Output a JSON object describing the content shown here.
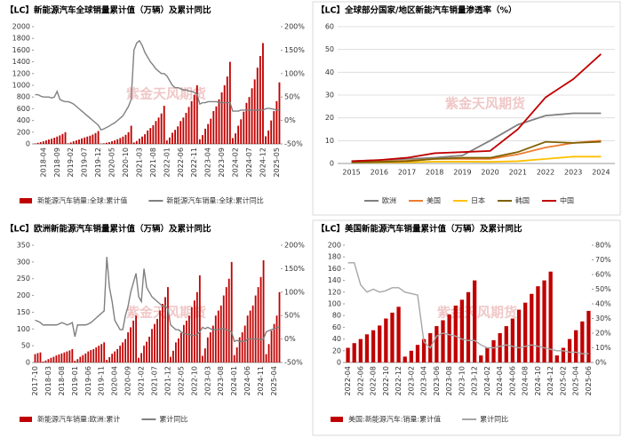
{
  "watermark": "紫金天风期货",
  "chart_data": [
    {
      "type": "combo",
      "title": "【LC】新能源汽车全球销量累计值（万辆）及累计同比",
      "grid": false,
      "categories": [
        null,
        null,
        null,
        "2018-04",
        null,
        null,
        null,
        null,
        "2018-09",
        null,
        null,
        null,
        null,
        "2019-02",
        null,
        null,
        null,
        null,
        "2019-07",
        null,
        null,
        null,
        null,
        "2019-12",
        null,
        null,
        null,
        null,
        "2020-05",
        null,
        null,
        null,
        null,
        "2020-10",
        null,
        null,
        null,
        null,
        "2021-03",
        null,
        null,
        null,
        null,
        "2021-08",
        null,
        null,
        null,
        null,
        "2022-01",
        null,
        null,
        null,
        null,
        "2022-06",
        null,
        null,
        null,
        null,
        "2022-11",
        null,
        null,
        null,
        null,
        "2023-04",
        null,
        null,
        null,
        null,
        "2023-09",
        null,
        null,
        null,
        null,
        "2024-02",
        null,
        null,
        null,
        null,
        "2024-07",
        null,
        null,
        null,
        null,
        "2024-12",
        null,
        null,
        null,
        null,
        "2025-05",
        null
      ],
      "ylim": [
        0,
        2000
      ],
      "yticks": [
        0,
        200,
        400,
        600,
        800,
        1000,
        1200,
        1400,
        1600,
        1800,
        2000
      ],
      "y2lim": [
        -50,
        200
      ],
      "y2ticks": [
        {
          "value": -50,
          "label": "-50%"
        },
        {
          "value": 0,
          "label": "0%"
        },
        {
          "value": 50,
          "label": "50%"
        },
        {
          "value": 100,
          "label": "100%"
        },
        {
          "value": 150,
          "label": "150%"
        },
        {
          "value": 200,
          "label": "200%"
        }
      ],
      "series": [
        {
          "name": "新能源汽车销量:全球:累计值",
          "color": "#c00000",
          "type": "bar",
          "values": [
            8,
            18,
            30,
            45,
            60,
            75,
            90,
            105,
            125,
            145,
            170,
            200,
            10,
            25,
            45,
            60,
            75,
            95,
            110,
            125,
            140,
            160,
            185,
            220,
            5,
            10,
            20,
            30,
            45,
            60,
            80,
            100,
            125,
            155,
            200,
            310,
            25,
            50,
            90,
            125,
            165,
            230,
            270,
            320,
            390,
            450,
            520,
            650,
            60,
            110,
            190,
            240,
            300,
            390,
            450,
            530,
            630,
            730,
            840,
            1000,
            80,
            150,
            260,
            340,
            430,
            560,
            640,
            760,
            880,
            1000,
            1150,
            1400,
            100,
            180,
            310,
            420,
            550,
            700,
            800,
            950,
            1100,
            1300,
            1500,
            1720,
            130,
            230,
            400,
            560,
            730,
            1050
          ]
        },
        {
          "name": "新能源汽车销量:全球:累计同比",
          "color": "#808080",
          "type": "line",
          "axis": "y2",
          "values": [
            55,
            55,
            52,
            50,
            50,
            50,
            48,
            50,
            62,
            45,
            42,
            40,
            40,
            38,
            35,
            30,
            25,
            20,
            15,
            10,
            5,
            0,
            -5,
            -10,
            -20,
            -18,
            -15,
            -12,
            -8,
            -5,
            0,
            5,
            10,
            20,
            30,
            45,
            150,
            165,
            170,
            160,
            145,
            135,
            125,
            118,
            110,
            105,
            100,
            100,
            95,
            85,
            75,
            70,
            70,
            68,
            65,
            65,
            63,
            62,
            60,
            55,
            35,
            38,
            38,
            40,
            40,
            40,
            40,
            38,
            38,
            38,
            38,
            38,
            20,
            20,
            20,
            22,
            22,
            22,
            22,
            22,
            22,
            22,
            22,
            22,
            25,
            26,
            25,
            24,
            22,
            22
          ]
        }
      ]
    },
    {
      "type": "line",
      "title": "【LC】全球部分国家/地区新能汽车销量渗透率（%）",
      "grid": true,
      "categories": [
        "2015",
        "2016",
        "2017",
        "2018",
        "2019",
        "2020",
        "2021",
        "2022",
        "2023",
        "2024"
      ],
      "ylim": [
        0,
        60
      ],
      "yticks": [
        0,
        10,
        20,
        30,
        40,
        50,
        60
      ],
      "series": [
        {
          "name": "欧洲",
          "color": "#808080",
          "values": [
            1,
            1.5,
            2,
            2.5,
            3.5,
            10,
            17,
            21,
            22,
            22
          ]
        },
        {
          "name": "美国",
          "color": "#ed7d31",
          "values": [
            0.7,
            0.9,
            1.2,
            2,
            2,
            2,
            4,
            7,
            9,
            10
          ]
        },
        {
          "name": "日本",
          "color": "#ffc000",
          "values": [
            0.5,
            0.5,
            0.5,
            0.8,
            0.8,
            0.7,
            1,
            2,
            3,
            3
          ]
        },
        {
          "name": "韩国",
          "color": "#7f6000",
          "values": [
            0.5,
            0.7,
            1,
            2,
            2.5,
            2.5,
            5,
            9.5,
            9,
            9.5
          ]
        },
        {
          "name": "中国",
          "color": "#c00000",
          "values": [
            1,
            1.5,
            2.5,
            4.5,
            5,
            5.5,
            15,
            29,
            37,
            48
          ]
        }
      ]
    },
    {
      "type": "combo",
      "title": "【LC】欧洲新能源汽车销量累计值（万辆）及累计同比",
      "grid": false,
      "categories": [
        "2017-10",
        null,
        null,
        null,
        null,
        "2018-03",
        null,
        null,
        null,
        null,
        "2018-08",
        null,
        null,
        null,
        null,
        "2019-01",
        null,
        null,
        null,
        null,
        "2019-06",
        null,
        null,
        null,
        null,
        "2019-11",
        null,
        null,
        null,
        null,
        "2020-04",
        null,
        null,
        null,
        null,
        "2020-09",
        null,
        null,
        null,
        null,
        "2021-02",
        null,
        null,
        null,
        null,
        "2021-07",
        null,
        null,
        null,
        null,
        "2021-12",
        null,
        null,
        null,
        null,
        "2022-05",
        null,
        null,
        null,
        null,
        "2022-10",
        null,
        null,
        null,
        null,
        "2023-03",
        null,
        null,
        null,
        null,
        "2023-08",
        null,
        null,
        null,
        null,
        "2024-01",
        null,
        null,
        null,
        null,
        "2024-06",
        null,
        null,
        null,
        null,
        "2024-11",
        null,
        null,
        null,
        null,
        "2025-04",
        null,
        null
      ],
      "ylim": [
        0,
        350
      ],
      "yticks": [
        0,
        50,
        100,
        150,
        200,
        250,
        300,
        350
      ],
      "y2lim": [
        -50,
        200
      ],
      "y2ticks": [
        {
          "value": -50,
          "label": "-50%"
        },
        {
          "value": 0,
          "label": "0%"
        },
        {
          "value": 50,
          "label": "50%"
        },
        {
          "value": 100,
          "label": "100%"
        },
        {
          "value": 150,
          "label": "150%"
        },
        {
          "value": 200,
          "label": "200%"
        }
      ],
      "series": [
        {
          "name": "新能源汽车销量:欧洲:累计",
          "color": "#c00000",
          "type": "bar",
          "values": [
            25,
            28,
            30,
            3,
            6,
            10,
            14,
            17,
            21,
            24,
            27,
            30,
            33,
            36,
            40,
            5,
            10,
            17,
            22,
            27,
            33,
            37,
            40,
            45,
            50,
            55,
            60,
            8,
            16,
            26,
            33,
            40,
            50,
            60,
            70,
            90,
            105,
            125,
            140,
            14,
            28,
            50,
            62,
            77,
            100,
            115,
            130,
            155,
            175,
            195,
            225,
            17,
            35,
            60,
            72,
            88,
            112,
            125,
            140,
            165,
            185,
            210,
            260,
            20,
            42,
            75,
            90,
            110,
            140,
            155,
            170,
            200,
            225,
            250,
            300,
            22,
            45,
            75,
            90,
            110,
            140,
            155,
            170,
            200,
            225,
            255,
            305,
            25,
            55,
            95,
            115,
            140,
            210
          ]
        },
        {
          "name": "累计同比",
          "color": "#808080",
          "type": "line",
          "axis": "y2",
          "values": [
            40,
            38,
            35,
            30,
            30,
            30,
            30,
            30,
            30,
            32,
            35,
            33,
            30,
            32,
            35,
            5,
            30,
            30,
            30,
            30,
            32,
            35,
            40,
            45,
            50,
            55,
            60,
            175,
            110,
            80,
            40,
            30,
            20,
            20,
            50,
            70,
            100,
            120,
            140,
            90,
            80,
            150,
            110,
            100,
            90,
            85,
            80,
            75,
            70,
            70,
            65,
            30,
            25,
            20,
            20,
            15,
            12,
            10,
            10,
            8,
            7,
            10,
            15,
            25,
            22,
            25,
            22,
            20,
            20,
            20,
            22,
            22,
            20,
            18,
            15,
            -5,
            -3,
            -5,
            -5,
            -5,
            0,
            0,
            0,
            0,
            0,
            -2,
            0,
            15,
            18,
            20,
            22,
            24,
            25
          ]
        }
      ]
    },
    {
      "type": "combo",
      "title": "【LC】美国新能源汽车销量累计值（万辆）及累计同比",
      "grid": false,
      "categories": [
        "2022-04",
        null,
        "2022-06",
        null,
        "2022-08",
        null,
        "2022-10",
        null,
        "2022-12",
        null,
        "2023-02",
        null,
        "2023-04",
        null,
        "2023-06",
        null,
        "2023-08",
        null,
        "2023-10",
        null,
        "2023-12",
        null,
        "2024-02",
        null,
        "2024-04",
        null,
        "2024-06",
        null,
        "2024-08",
        null,
        "2024-10",
        null,
        "2024-12",
        null,
        "2025-02",
        null,
        "2025-04",
        null,
        "2025-06"
      ],
      "ylim": [
        0,
        200
      ],
      "yticks": [
        0,
        20,
        40,
        60,
        80,
        100,
        120,
        140,
        160,
        180,
        200
      ],
      "y2lim": [
        0,
        80
      ],
      "y2ticks": [
        {
          "value": 0,
          "label": "0%"
        },
        {
          "value": 10,
          "label": "10%"
        },
        {
          "value": 20,
          "label": "20%"
        },
        {
          "value": 30,
          "label": "30%"
        },
        {
          "value": 40,
          "label": "40%"
        },
        {
          "value": 50,
          "label": "50%"
        },
        {
          "value": 60,
          "label": "60%"
        },
        {
          "value": 70,
          "label": "70%"
        },
        {
          "value": 80,
          "label": "80%"
        }
      ],
      "series": [
        {
          "name": "美国:新能源汽车:销量:累计值",
          "color": "#c00000",
          "type": "bar",
          "values": [
            25,
            33,
            40,
            48,
            55,
            63,
            75,
            85,
            95,
            10,
            20,
            30,
            40,
            50,
            62,
            72,
            82,
            97,
            107,
            120,
            140,
            12,
            25,
            38,
            50,
            62,
            75,
            90,
            102,
            117,
            130,
            140,
            155,
            12,
            25,
            40,
            55,
            70,
            88
          ]
        },
        {
          "name": "累计同比",
          "color": "#a6a6a6",
          "type": "line",
          "axis": "y2",
          "values": [
            68,
            68,
            53,
            48,
            50,
            48,
            49,
            51,
            51,
            48,
            47,
            46,
            14,
            10,
            18,
            20,
            19,
            18,
            16,
            15,
            15,
            12,
            10,
            10,
            11,
            12,
            11,
            10,
            11,
            12,
            11,
            10,
            9,
            8,
            8,
            7,
            7,
            6,
            6
          ]
        }
      ]
    }
  ]
}
